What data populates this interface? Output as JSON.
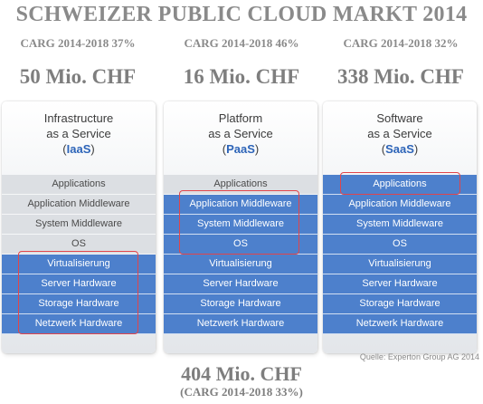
{
  "title": "SCHWEIZER PUBLIC CLOUD MARKT 2014",
  "columns": [
    {
      "cagr": "CARG 2014-2018 37%",
      "amount": "50 Mio. CHF",
      "head_line1": "Infrastructure",
      "head_line2": "as a Service",
      "abbr": "IaaS",
      "layers": [
        "Applications",
        "Application Middleware",
        "System Middleware",
        "OS",
        "Virtualisierung",
        "Server Hardware",
        "Storage Hardware",
        "Netzwerk Hardware"
      ],
      "provided_from_layer": 4
    },
    {
      "cagr": "CARG 2014-2018 46%",
      "amount": "16 Mio. CHF",
      "head_line1": "Platform",
      "head_line2": "as a Service",
      "abbr": "PaaS",
      "layers": [
        "Applications",
        "Application Middleware",
        "System Middleware",
        "OS",
        "Virtualisierung",
        "Server Hardware",
        "Storage Hardware",
        "Netzwerk Hardware"
      ],
      "provided_from_layer": 1
    },
    {
      "cagr": "CARG 2014-2018 32%",
      "amount": "338 Mio. CHF",
      "head_line1": "Software",
      "head_line2": "as a Service",
      "abbr": "SaaS",
      "layers": [
        "Applications",
        "Application Middleware",
        "System Middleware",
        "OS",
        "Virtualisierung",
        "Server Hardware",
        "Storage Hardware",
        "Netzwerk Hardware"
      ],
      "provided_from_layer": 0
    }
  ],
  "source": "Quelle: Experton Group AG 2014",
  "total": "404 Mio. CHF",
  "total_cagr": "(CARG 2014-2018 33%)",
  "colors": {
    "provided_layer": "#4d80cc",
    "managed_layer": "#dcdfe3",
    "highlight": "#e0454b",
    "abbr_text": "#2d64b8"
  }
}
